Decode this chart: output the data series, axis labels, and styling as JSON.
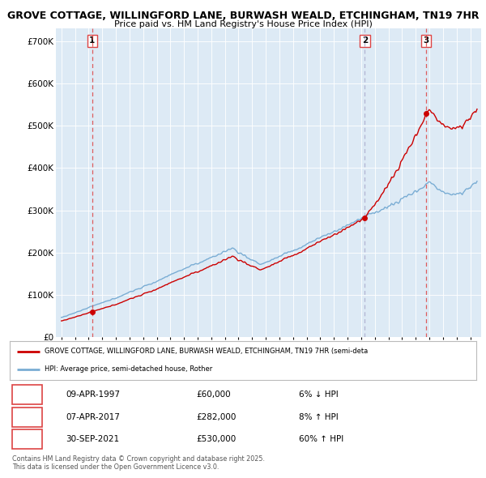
{
  "title_line1": "GROVE COTTAGE, WILLINGFORD LANE, BURWASH WEALD, ETCHINGHAM, TN19 7HR",
  "title_line2": "Price paid vs. HM Land Registry's House Price Index (HPI)",
  "ylim": [
    0,
    730000
  ],
  "yticks": [
    0,
    100000,
    200000,
    300000,
    400000,
    500000,
    600000,
    700000
  ],
  "ytick_labels": [
    "£0",
    "£100K",
    "£200K",
    "£300K",
    "£400K",
    "£500K",
    "£600K",
    "£700K"
  ],
  "xlim_start": 1994.6,
  "xlim_end": 2025.8,
  "sale_dates": [
    1997.27,
    2017.27,
    2021.75
  ],
  "sale_prices": [
    60000,
    282000,
    530000
  ],
  "sale_labels": [
    "1",
    "2",
    "3"
  ],
  "sale_date_strings": [
    "09-APR-1997",
    "07-APR-2017",
    "30-SEP-2021"
  ],
  "sale_price_strings": [
    "£60,000",
    "£282,000",
    "£530,000"
  ],
  "sale_pct_strings": [
    "6% ↓ HPI",
    "8% ↑ HPI",
    "60% ↑ HPI"
  ],
  "price_line_color": "#cc0000",
  "hpi_line_color": "#7aadd4",
  "vline_color_red": "#dd4444",
  "vline_color_gray": "#aaaacc",
  "background_color": "#ddeaf5",
  "plot_bg_color": "#ddeaf5",
  "legend_label_price": "GROVE COTTAGE, WILLINGFORD LANE, BURWASH WEALD, ETCHINGHAM, TN19 7HR (semi-deta",
  "legend_label_hpi": "HPI: Average price, semi-detached house, Rother",
  "footer_text": "Contains HM Land Registry data © Crown copyright and database right 2025.\nThis data is licensed under the Open Government Licence v3.0."
}
